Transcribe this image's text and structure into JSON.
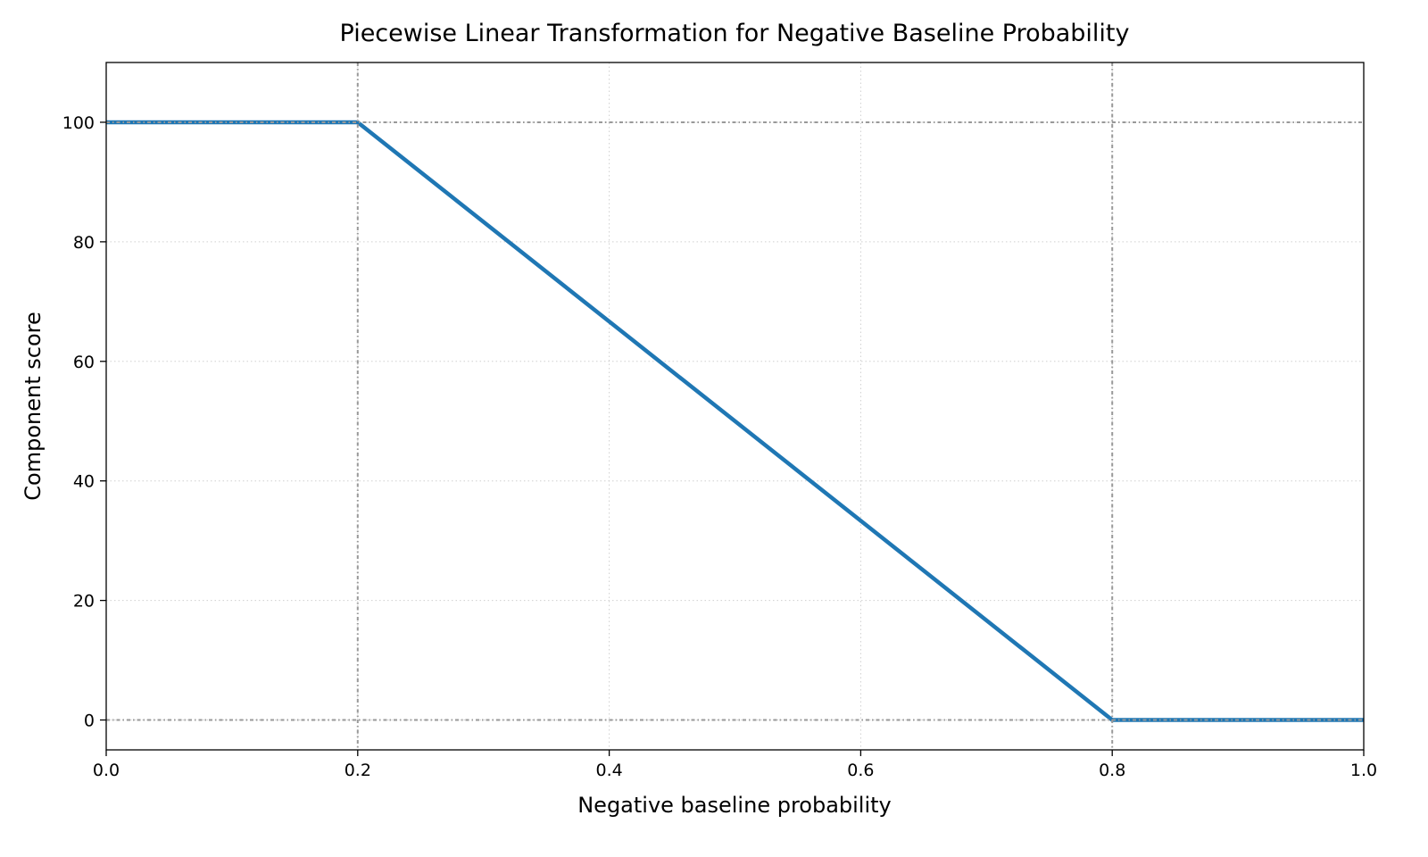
{
  "chart_data": {
    "type": "line",
    "title": "Piecewise Linear Transformation for Negative Baseline Probability",
    "xlabel": "Negative baseline probability",
    "ylabel": "Component score",
    "xlim": [
      0.0,
      1.0
    ],
    "ylim": [
      -5,
      110
    ],
    "xticks": [
      0.0,
      0.2,
      0.4,
      0.6,
      0.8,
      1.0
    ],
    "xtick_labels": [
      "0.0",
      "0.2",
      "0.4",
      "0.6",
      "0.8",
      "1.0"
    ],
    "yticks": [
      0,
      20,
      40,
      60,
      80,
      100
    ],
    "ytick_labels": [
      "0",
      "20",
      "40",
      "60",
      "80",
      "100"
    ],
    "grid": true,
    "series": [
      {
        "x": [
          0.0,
          0.2,
          0.8,
          1.0
        ],
        "y": [
          100,
          100,
          0,
          0
        ],
        "color": "#1f77b4"
      }
    ],
    "reference_lines": {
      "vertical": [
        0.2,
        0.8
      ],
      "horizontal": [
        0,
        100
      ],
      "color": "#999999",
      "style": "dash-dot"
    }
  }
}
